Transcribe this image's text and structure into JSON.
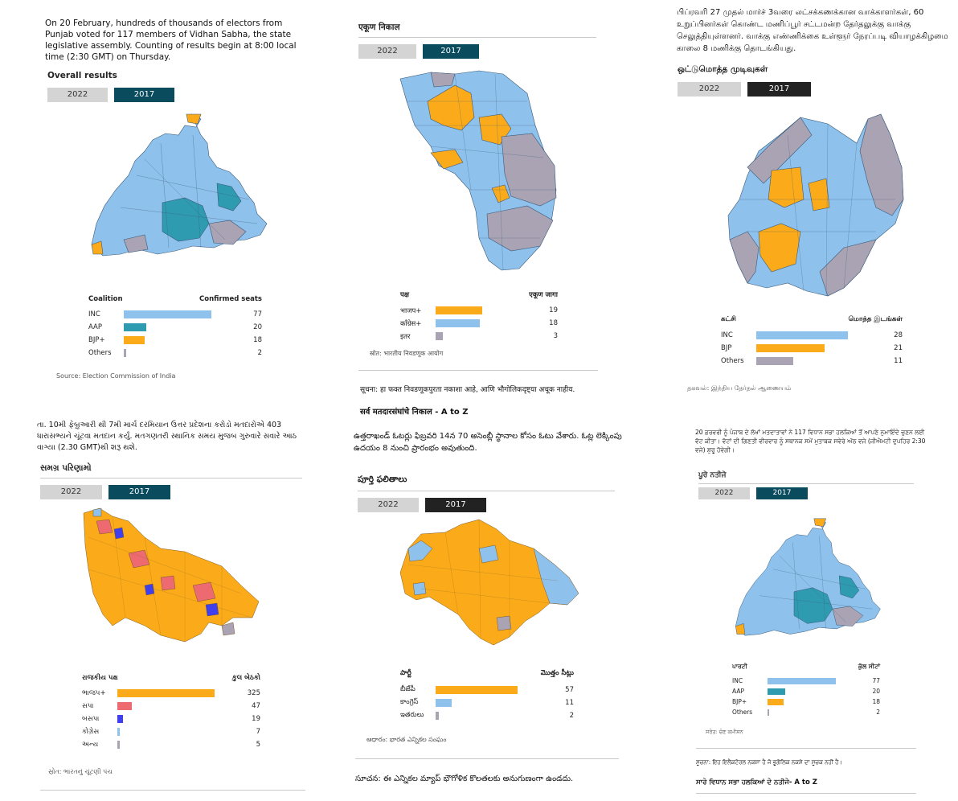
{
  "colors": {
    "inc": "#8ec1eb",
    "aap": "#2f9bb0",
    "bjp": "#fbab19",
    "sp": "#ec6a70",
    "bsp": "#3f3ff0",
    "other": "#a9a3b3",
    "tab_on": "#0a4b5e",
    "tab_on_dark": "#222222",
    "tab_off": "#d4d4d4"
  },
  "p1": {
    "intro": "On 20 February, hundreds of thousands of electors from Punjab voted for 117 members of Vidhan Sabha, the state legislative assembly. Counting of results begin at 8:00 local time (2:30 GMT) on Thursday.",
    "title": "Overall results",
    "tab_a": "2022",
    "tab_b": "2017",
    "col1": "Coalition",
    "col2": "Confirmed seats",
    "rows": [
      {
        "label": "INC",
        "value": "77",
        "fraction": 0.77
      },
      {
        "label": "AAP",
        "value": "20",
        "fraction": 0.2
      },
      {
        "label": "BJP+",
        "value": "18",
        "fraction": 0.18
      },
      {
        "label": "Others",
        "value": "2",
        "fraction": 0.02
      }
    ],
    "source": "Source: Election Commission of India"
  },
  "p2": {
    "title": "एकूण निकाल",
    "tab_a": "2022",
    "tab_b": "2017",
    "col1": "पक्ष",
    "col2": "एकूण जागा",
    "rows": [
      {
        "label": "भाजप+",
        "value": "19",
        "fraction": 0.475
      },
      {
        "label": "काँग्रेस+",
        "value": "18",
        "fraction": 0.45
      },
      {
        "label": "इतर",
        "value": "3",
        "fraction": 0.075
      }
    ],
    "source": "स्रोत: भारतीय निवडणूक आयोग",
    "note": "सूचना: हा फक्त निवडणूकपुरता नकाशा आहे, आणि भौगोलिकदृष्ट्या अचूक नाहीय.",
    "sub": "सर्व मतदारसंघांचे निकाल - A to Z"
  },
  "p3": {
    "intro": "பிப்ரவரி 27 முதல் மார்ச் 3வரை லட்சக்கணக்கான வாக்காளர்கள், 60 உறுப்பினர்கள் கொண்ட மணிப்பூர் சட்டமன்ற தேர்தலுக்கு வாக்கு செலுத்தியுள்ளனர். வாக்கு எண்ணிக்கை உள்ளூர் நேரப்படி வியாழக்கிழமை காலை 8 மணிக்கு தொடங்கியது.",
    "title": "ஒட்டுமொத்த முடிவுகள்",
    "tab_a": "2022",
    "tab_b": "2017",
    "col1": "கட்சி",
    "col2": "மொத்த இடங்கள்",
    "rows": [
      {
        "label": "INC",
        "value": "28",
        "fraction": 0.75
      },
      {
        "label": "BJP",
        "value": "21",
        "fraction": 0.56
      },
      {
        "label": "Others",
        "value": "11",
        "fraction": 0.3
      }
    ],
    "source": "தகவல்: இந்திய தேர்தல் ஆணையம்"
  },
  "p4": {
    "intro": "તા. 10મી ફેબ્રુઆરી થી 7મી માર્ચ દરમિયાન ઉત્તર પ્રદેશના કરોડો મતદારોએ 403 ધારાસભ્યને ચૂંટવા મતદાન કર્યું. મતગણતરી સ્થાનિક સમય મુજબ ગુરુવારે સવારે આઠ વાગ્યા (2.30 GMT)થી શરૂ થશે.",
    "title": "સમગ્ર પરિણામો",
    "tab_a": "2022",
    "tab_b": "2017",
    "col1": "રાજકીય પક્ષ",
    "col2": "કુલ બેઠકો",
    "rows": [
      {
        "label": "ભાજપ+",
        "value": "325",
        "fraction": 0.82
      },
      {
        "label": "સપા",
        "value": "47",
        "fraction": 0.12
      },
      {
        "label": "બસપા",
        "value": "19",
        "fraction": 0.05
      },
      {
        "label": "કોંગ્રેસ",
        "value": "7",
        "fraction": 0.02
      },
      {
        "label": "અન્ય",
        "value": "5",
        "fraction": 0.02
      }
    ],
    "source": "સ્રોત: ભારતનું ચૂંટણી પંચ"
  },
  "p5": {
    "intro": "ఉత్తరాఖండ్ ఓటర్లు ఫిబ్రవరి 14న 70 అసెంబ్లీ స్థానాల కోసం ఓటు వేశారు. ఓట్ల లెక్కింపు ఉదయం 8 నుంచి ప్రారంభం అవుతుంది.",
    "title": "పూర్తి ఫలితాలు",
    "tab_a": "2022",
    "tab_b": "2017",
    "col1": "పార్టీ",
    "col2": "మొత్తం సీట్లు",
    "rows": [
      {
        "label": "బీజేపీ",
        "value": "57",
        "fraction": 0.72
      },
      {
        "label": "కాంగ్రెస్",
        "value": "11",
        "fraction": 0.14
      },
      {
        "label": "ఇతరులు",
        "value": "2",
        "fraction": 0.03
      }
    ],
    "source": "ఆధారం: భారత ఎన్నికల సంఘం",
    "note": "సూచన: ఈ ఎన్నికల మ్యాప్ భౌగోళిక కొలతలకు అనుగుణంగా ఉండదు."
  },
  "p6": {
    "intro": "20 ਫ਼ਰਵਰੀ ਨੂੰ ਪੰਜਾਬ ਦੇ ਲੱਖਾਂ ਮਤਦਾਤਾਵਾਂ ਨੇ 117 ਵਿਧਾਨ ਸਭਾ ਹਲਕਿਆਂ ਤੋਂ ਆਪਣੇ ਨੁਮਾਇੰਦੇ ਚੁਣਨ ਲਈ ਵੋਟ ਕੀਤਾ। ਵੋਟਾਂ ਦੀ ਗਿਣਤੀ ਵੀਰਵਾਰ ਨੂੰ ਸਥਾਨਕ ਸਮੇਂ ਮੁਤਾਬਕ ਸਵੇਰੇ ਅੱਠ ਵਜੇ (ਜੀਐਮਟੀ ਦੁਪਹਿਰ 2:30 ਵਜੇ) ਸ਼ੁਰੂ ਹੋਵੇਗੀ।",
    "title": "ਪੂਰੇ ਨਤੀਜੇ",
    "tab_a": "2022",
    "tab_b": "2017",
    "col1": "ਪਾਰਟੀ",
    "col2": "ਕੁੱਲ ਸੀਟਾਂ",
    "rows": [
      {
        "label": "INC",
        "value": "77",
        "fraction": 0.77
      },
      {
        "label": "AAP",
        "value": "20",
        "fraction": 0.2
      },
      {
        "label": "BJP+",
        "value": "18",
        "fraction": 0.18
      },
      {
        "label": "Others",
        "value": "2",
        "fraction": 0.02
      }
    ],
    "source": "ਸਰੋਤ: ਚੋਣ ਕਮੀਸ਼ਨ",
    "note": "ਸੂਚਨਾ: ਇਹ ਇਲੈਕਟੋਰਲ ਨਕਸ਼ਾ ਹੈ ਜੋ ਭੂਗੋਲਿਕ ਨਕਸ਼ੇ ਦਾ ਸੂਚਕ ਨਹੀਂ ਹੈ।",
    "sub": "ਸਾਰੇ ਵਿਧਾਨ ਸਭਾ ਹਲਕਿਆਂ ਦੇ ਨਤੀਜੇ- A to Z"
  }
}
